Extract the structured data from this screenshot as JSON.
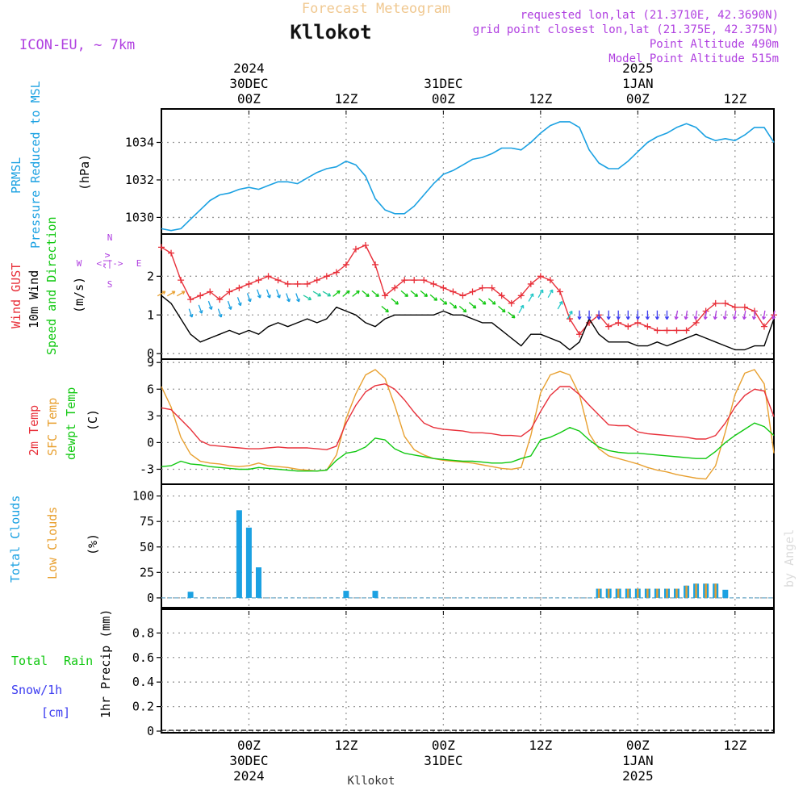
{
  "header": {
    "subtitle": "Forecast Meteogram",
    "station": "Kllokot",
    "model": "ICON-EU, ~ 7km",
    "requested": "requested lon,lat (21.3710E, 42.3690N)",
    "grid_point": "grid point closest lon,lat (21.375E, 42.375N)",
    "point_altitude": "Point Altitude 490m",
    "model_altitude": "Model Point Altitude 515m",
    "footer_station": "Kllokot",
    "credit": "by Angel"
  },
  "time_axis": {
    "hours_span": [
      -9,
      54
    ],
    "ticks": [
      {
        "hour": 0,
        "top": [
          "2024",
          "30DEC",
          "00Z"
        ],
        "bottom": [
          "00Z",
          "30DEC",
          "2024"
        ]
      },
      {
        "hour": 10,
        "top": [
          "12Z"
        ],
        "bottom": [
          "12Z"
        ]
      },
      {
        "hour": 20,
        "top": [
          "31DEC",
          "00Z"
        ],
        "bottom": [
          "00Z",
          "31DEC"
        ]
      },
      {
        "hour": 30,
        "top": [
          "12Z"
        ],
        "bottom": [
          "12Z"
        ]
      },
      {
        "hour": 40,
        "top": [
          "2025",
          "1JAN",
          "00Z"
        ],
        "bottom": [
          "00Z",
          "1JAN",
          "2025"
        ]
      },
      {
        "hour": 50,
        "top": [
          "12Z"
        ],
        "bottom": [
          "12Z"
        ]
      }
    ]
  },
  "panel_labels": {
    "pressure": {
      "l1": "PRMSL",
      "l2": "Pressure Reduced to MSL",
      "unit": "(hPa)"
    },
    "wind": {
      "gust": "Wind GUST",
      "wind10_a": "10m Wind",
      "wind10_b": "Speed and Direction",
      "unit": "(m/s)",
      "compass_n": "N",
      "compass_s": "S",
      "compass_w": "W",
      "compass_e": "E",
      "compass_h": "<-|->",
      "compass_v": "^|v"
    },
    "temp": {
      "t2m": "2m Temp",
      "sfc": "SFC Temp",
      "dew": "dewpt Temp",
      "unit": "(C)"
    },
    "clouds": {
      "total": "Total Clouds",
      "low": "Low Clouds",
      "unit": "(%)"
    },
    "precip": {
      "rain_a": "Total",
      "rain_b": "Rain",
      "snow": "Snow/1h",
      "snow_unit": "[cm]",
      "unit": "1hr Precip (mm)"
    }
  },
  "colors": {
    "pressure": "#1ba1e2",
    "gust": "#e8303a",
    "wind": "#000000",
    "t2m": "#e8303a",
    "sfc": "#e8a030",
    "dew": "#10c810",
    "total_cloud": "#1ba1e2",
    "low_cloud": "#e8a030",
    "rain": "#10c810",
    "snow": "#3a3af0",
    "purple": "#b040e0",
    "grid": "#9a9a9a"
  },
  "chart_data": [
    {
      "type": "line",
      "title": "PRMSL Pressure Reduced to MSL",
      "ylabel": "(hPa)",
      "ylim": [
        1029.2,
        1035.7
      ],
      "yticks": [
        1030,
        1032,
        1034
      ],
      "x": [
        -9,
        -8,
        -7,
        -6,
        -5,
        -4,
        -3,
        -2,
        -1,
        0,
        1,
        2,
        3,
        4,
        5,
        6,
        7,
        8,
        9,
        10,
        11,
        12,
        13,
        14,
        15,
        16,
        17,
        18,
        19,
        20,
        21,
        22,
        23,
        24,
        25,
        26,
        27,
        28,
        29,
        30,
        31,
        32,
        33,
        34,
        35,
        36,
        37,
        38,
        39,
        40,
        41,
        42,
        43,
        44,
        45,
        46,
        47,
        48,
        49,
        50,
        51,
        52,
        53,
        54
      ],
      "series": [
        {
          "name": "PRMSL",
          "values": [
            1029.4,
            1029.3,
            1029.4,
            1029.9,
            1030.4,
            1030.9,
            1031.2,
            1031.3,
            1031.5,
            1031.6,
            1031.5,
            1031.7,
            1031.9,
            1031.9,
            1031.8,
            1032.1,
            1032.4,
            1032.6,
            1032.7,
            1033.0,
            1032.8,
            1032.2,
            1031.0,
            1030.4,
            1030.2,
            1030.2,
            1030.6,
            1031.2,
            1031.8,
            1032.3,
            1032.5,
            1032.8,
            1033.1,
            1033.2,
            1033.4,
            1033.7,
            1033.7,
            1033.6,
            1034.0,
            1034.5,
            1034.9,
            1035.1,
            1035.1,
            1034.8,
            1033.6,
            1032.9,
            1032.6,
            1032.6,
            1033.0,
            1033.5,
            1034.0,
            1034.3,
            1034.5,
            1034.8,
            1035.0,
            1034.8,
            1034.3,
            1034.1,
            1034.2,
            1034.1,
            1034.4,
            1034.8,
            1034.8,
            1034.0
          ]
        }
      ]
    },
    {
      "type": "line",
      "title": "Wind GUST / 10m Wind Speed and Direction",
      "ylabel": "(m/s)",
      "ylim": [
        -0.1,
        3.05
      ],
      "yticks": [
        0,
        1,
        2
      ],
      "x": [
        -9,
        -8,
        -7,
        -6,
        -5,
        -4,
        -3,
        -2,
        -1,
        0,
        1,
        2,
        3,
        4,
        5,
        6,
        7,
        8,
        9,
        10,
        11,
        12,
        13,
        14,
        15,
        16,
        17,
        18,
        19,
        20,
        21,
        22,
        23,
        24,
        25,
        26,
        27,
        28,
        29,
        30,
        31,
        32,
        33,
        34,
        35,
        36,
        37,
        38,
        39,
        40,
        41,
        42,
        43,
        44,
        45,
        46,
        47,
        48,
        49,
        50,
        51,
        52,
        53,
        54
      ],
      "series": [
        {
          "name": "Wind GUST",
          "values": [
            2.75,
            2.6,
            1.9,
            1.4,
            1.5,
            1.6,
            1.4,
            1.6,
            1.7,
            1.8,
            1.9,
            2.0,
            1.9,
            1.8,
            1.8,
            1.8,
            1.9,
            2.0,
            2.1,
            2.3,
            2.7,
            2.8,
            2.3,
            1.5,
            1.7,
            1.9,
            1.9,
            1.9,
            1.8,
            1.7,
            1.6,
            1.5,
            1.6,
            1.7,
            1.7,
            1.5,
            1.3,
            1.5,
            1.8,
            2.0,
            1.9,
            1.6,
            0.9,
            0.5,
            0.8,
            1.0,
            0.7,
            0.8,
            0.7,
            0.8,
            0.7,
            0.6,
            0.6,
            0.6,
            0.6,
            0.8,
            1.1,
            1.3,
            1.3,
            1.2,
            1.2,
            1.1,
            0.7,
            1.0
          ]
        },
        {
          "name": "10m Wind",
          "values": [
            1.5,
            1.3,
            0.9,
            0.5,
            0.3,
            0.4,
            0.5,
            0.6,
            0.5,
            0.6,
            0.5,
            0.7,
            0.8,
            0.7,
            0.8,
            0.9,
            0.8,
            0.9,
            1.2,
            1.1,
            1.0,
            0.8,
            0.7,
            0.9,
            1.0,
            1.0,
            1.0,
            1.0,
            1.0,
            1.1,
            1.0,
            1.0,
            0.9,
            0.8,
            0.8,
            0.6,
            0.4,
            0.2,
            0.5,
            0.5,
            0.4,
            0.3,
            0.1,
            0.3,
            0.9,
            0.5,
            0.3,
            0.3,
            0.3,
            0.2,
            0.2,
            0.3,
            0.2,
            0.3,
            0.4,
            0.5,
            0.4,
            0.3,
            0.2,
            0.1,
            0.1,
            0.2,
            0.2,
            0.9
          ]
        }
      ]
    },
    {
      "type": "line",
      "title": "2m Temp / SFC Temp / dewpt Temp",
      "ylabel": "(C)",
      "ylim": [
        -4.5,
        9.2
      ],
      "yticks": [
        -3,
        0,
        3,
        6,
        9
      ],
      "x": [
        -9,
        -8,
        -7,
        -6,
        -5,
        -4,
        -3,
        -2,
        -1,
        0,
        1,
        2,
        3,
        4,
        5,
        6,
        7,
        8,
        9,
        10,
        11,
        12,
        13,
        14,
        15,
        16,
        17,
        18,
        19,
        20,
        21,
        22,
        23,
        24,
        25,
        26,
        27,
        28,
        29,
        30,
        31,
        32,
        33,
        34,
        35,
        36,
        37,
        38,
        39,
        40,
        41,
        42,
        43,
        44,
        45,
        46,
        47,
        48,
        49,
        50,
        51,
        52,
        53,
        54
      ],
      "series": [
        {
          "name": "2m Temp",
          "values": [
            3.9,
            3.7,
            2.6,
            1.5,
            0.2,
            -0.3,
            -0.4,
            -0.5,
            -0.6,
            -0.7,
            -0.7,
            -0.6,
            -0.5,
            -0.6,
            -0.6,
            -0.6,
            -0.7,
            -0.8,
            -0.4,
            2.2,
            4.2,
            5.7,
            6.4,
            6.6,
            6.0,
            4.8,
            3.4,
            2.2,
            1.7,
            1.5,
            1.4,
            1.3,
            1.1,
            1.1,
            1.0,
            0.8,
            0.8,
            0.7,
            1.5,
            3.5,
            5.3,
            6.3,
            6.3,
            5.4,
            4.2,
            3.1,
            2.0,
            1.9,
            1.9,
            1.2,
            1.0,
            0.9,
            0.8,
            0.7,
            0.6,
            0.4,
            0.4,
            0.8,
            2.2,
            4.0,
            5.3,
            6.0,
            5.8,
            2.9
          ]
        },
        {
          "name": "SFC Temp",
          "values": [
            6.3,
            4.0,
            0.6,
            -1.3,
            -2.1,
            -2.3,
            -2.4,
            -2.6,
            -2.7,
            -2.6,
            -2.3,
            -2.6,
            -2.7,
            -2.8,
            -3.0,
            -3.1,
            -3.2,
            -3.1,
            -1.4,
            2.7,
            5.5,
            7.6,
            8.2,
            7.2,
            4.2,
            0.7,
            -0.8,
            -1.4,
            -1.8,
            -2.0,
            -2.1,
            -2.2,
            -2.3,
            -2.5,
            -2.7,
            -2.9,
            -3.0,
            -2.8,
            0.8,
            5.6,
            7.6,
            8.0,
            7.6,
            5.4,
            1.0,
            -0.7,
            -1.5,
            -1.8,
            -2.1,
            -2.4,
            -2.8,
            -3.1,
            -3.3,
            -3.6,
            -3.8,
            -4.0,
            -4.1,
            -2.6,
            1.2,
            5.4,
            7.8,
            8.2,
            6.6,
            -1.2
          ]
        },
        {
          "name": "dewpt Temp",
          "values": [
            -2.7,
            -2.6,
            -2.1,
            -2.4,
            -2.5,
            -2.7,
            -2.8,
            -2.9,
            -3.0,
            -3.0,
            -2.8,
            -2.9,
            -3.0,
            -3.1,
            -3.2,
            -3.2,
            -3.2,
            -3.1,
            -2.0,
            -1.2,
            -1.0,
            -0.5,
            0.5,
            0.3,
            -0.7,
            -1.2,
            -1.4,
            -1.6,
            -1.8,
            -1.9,
            -2.0,
            -2.1,
            -2.1,
            -2.2,
            -2.3,
            -2.3,
            -2.2,
            -1.8,
            -1.5,
            0.3,
            0.6,
            1.1,
            1.7,
            1.3,
            0.3,
            -0.5,
            -0.9,
            -1.1,
            -1.2,
            -1.2,
            -1.3,
            -1.4,
            -1.5,
            -1.6,
            -1.7,
            -1.8,
            -1.8,
            -1.0,
            0.0,
            0.8,
            1.5,
            2.2,
            1.8,
            0.8
          ]
        }
      ]
    },
    {
      "type": "bar",
      "title": "Total Clouds / Low Clouds",
      "ylabel": "(%)",
      "ylim": [
        -8,
        110
      ],
      "yticks": [
        0,
        25,
        50,
        75,
        100
      ],
      "total": [
        {
          "hour": -6,
          "value": 6
        },
        {
          "hour": -1,
          "value": 86
        },
        {
          "hour": 0,
          "value": 69
        },
        {
          "hour": 1,
          "value": 30
        },
        {
          "hour": 10,
          "value": 7
        },
        {
          "hour": 13,
          "value": 7
        },
        {
          "hour": 36,
          "value": 9
        },
        {
          "hour": 37,
          "value": 9
        },
        {
          "hour": 38,
          "value": 9
        },
        {
          "hour": 39,
          "value": 9
        },
        {
          "hour": 40,
          "value": 9
        },
        {
          "hour": 41,
          "value": 9
        },
        {
          "hour": 42,
          "value": 9
        },
        {
          "hour": 43,
          "value": 9
        },
        {
          "hour": 44,
          "value": 9
        },
        {
          "hour": 45,
          "value": 12
        },
        {
          "hour": 46,
          "value": 14
        },
        {
          "hour": 47,
          "value": 14
        },
        {
          "hour": 48,
          "value": 14
        },
        {
          "hour": 49,
          "value": 8
        }
      ],
      "low": [
        {
          "hour": 36,
          "value": 9
        },
        {
          "hour": 37,
          "value": 9
        },
        {
          "hour": 38,
          "value": 9
        },
        {
          "hour": 39,
          "value": 9
        },
        {
          "hour": 40,
          "value": 9
        },
        {
          "hour": 41,
          "value": 9
        },
        {
          "hour": 42,
          "value": 9
        },
        {
          "hour": 43,
          "value": 9
        },
        {
          "hour": 44,
          "value": 9
        },
        {
          "hour": 45,
          "value": 12
        },
        {
          "hour": 46,
          "value": 14
        },
        {
          "hour": 47,
          "value": 14
        },
        {
          "hour": 48,
          "value": 14
        }
      ]
    },
    {
      "type": "bar",
      "title": "Total Rain / Snow 1h",
      "ylabel": "1hr Precip (mm)",
      "ylim": [
        0,
        0.98
      ],
      "yticks": [
        0,
        0.2,
        0.4,
        0.6,
        0.8
      ],
      "ytick_labels": [
        "0",
        "0.2",
        "0.4",
        "0.6",
        "0.8"
      ],
      "values": []
    }
  ]
}
